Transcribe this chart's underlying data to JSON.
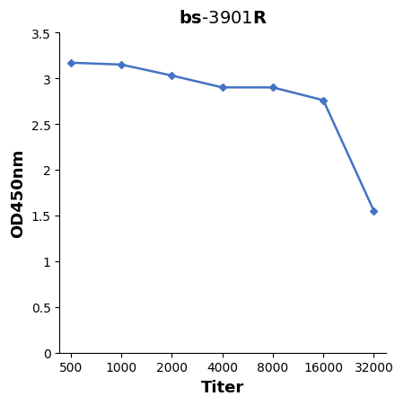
{
  "x_values": [
    500,
    1000,
    2000,
    4000,
    8000,
    16000,
    32000
  ],
  "y_values": [
    3.17,
    3.15,
    3.03,
    2.9,
    2.9,
    2.76,
    1.55
  ],
  "xlabel": "Titer",
  "ylabel": "OD450nm",
  "ylim": [
    0,
    3.5
  ],
  "yticks": [
    0,
    0.5,
    1,
    1.5,
    2,
    2.5,
    3,
    3.5
  ],
  "xtick_labels": [
    "500",
    "1000",
    "2000",
    "4000",
    "8000",
    "16000",
    "32000"
  ],
  "line_color": "#4472C4",
  "marker": "D",
  "marker_size": 4,
  "line_width": 1.8,
  "background_color": "#ffffff",
  "title_fontsize": 14,
  "axis_label_fontsize": 13,
  "tick_fontsize": 10
}
